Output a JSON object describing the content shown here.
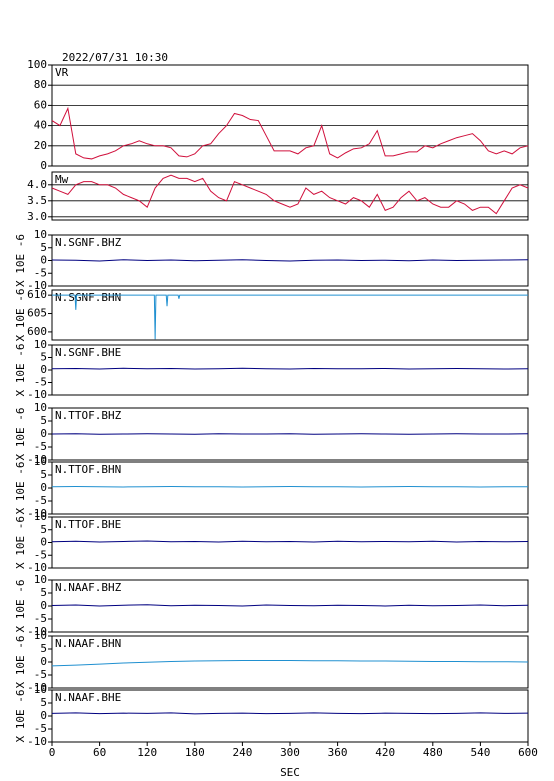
{
  "header": {
    "title": "2022/07/31  10:30"
  },
  "chart_data": [
    {
      "type": "line",
      "ylim": [
        0,
        100
      ],
      "yticks": [
        0,
        20,
        40,
        60,
        80,
        100
      ],
      "grid": true,
      "xlim": [
        0,
        600
      ],
      "x": [
        0,
        10,
        20,
        30,
        40,
        50,
        60,
        70,
        80,
        90,
        100,
        110,
        120,
        130,
        140,
        150,
        160,
        170,
        180,
        190,
        200,
        210,
        220,
        230,
        240,
        250,
        260,
        270,
        280,
        290,
        300,
        310,
        320,
        330,
        340,
        350,
        360,
        370,
        380,
        390,
        400,
        410,
        420,
        430,
        440,
        450,
        460,
        470,
        480,
        490,
        500,
        510,
        520,
        530,
        540,
        550,
        560,
        570,
        580,
        590,
        600
      ],
      "series": [
        {
          "name": "VR",
          "color": "#d0103c",
          "values": [
            45,
            40,
            57,
            12,
            8,
            7,
            10,
            12,
            15,
            20,
            22,
            25,
            22,
            20,
            20,
            18,
            10,
            9,
            12,
            20,
            22,
            32,
            40,
            52,
            50,
            46,
            45,
            30,
            15,
            15,
            15,
            12,
            18,
            20,
            40,
            12,
            8,
            13,
            17,
            18,
            22,
            35,
            10,
            10,
            12,
            14,
            14,
            20,
            18,
            22,
            25,
            28,
            30,
            32,
            25,
            15,
            12,
            15,
            12,
            18,
            20
          ]
        }
      ]
    },
    {
      "type": "line",
      "ylim": [
        2.9,
        4.4
      ],
      "yticks": [
        {
          "value": 3.0,
          "label": "3.0"
        },
        3.5,
        {
          "value": 4.0,
          "label": "4.0"
        }
      ],
      "grid": true,
      "xlim": [
        0,
        600
      ],
      "x": [
        0,
        10,
        20,
        30,
        40,
        50,
        60,
        70,
        80,
        90,
        100,
        110,
        120,
        130,
        140,
        150,
        160,
        170,
        180,
        190,
        200,
        210,
        220,
        230,
        240,
        250,
        260,
        270,
        280,
        290,
        300,
        310,
        320,
        330,
        340,
        350,
        360,
        370,
        380,
        390,
        400,
        410,
        420,
        430,
        440,
        450,
        460,
        470,
        480,
        490,
        500,
        510,
        520,
        530,
        540,
        550,
        560,
        570,
        580,
        590,
        600
      ],
      "series": [
        {
          "name": "Mw",
          "color": "#d0103c",
          "values": [
            3.9,
            3.8,
            3.7,
            4.0,
            4.1,
            4.1,
            4.0,
            4.0,
            3.9,
            3.7,
            3.6,
            3.5,
            3.3,
            3.9,
            4.2,
            4.3,
            4.2,
            4.2,
            4.1,
            4.2,
            3.8,
            3.6,
            3.5,
            4.1,
            4.0,
            3.9,
            3.8,
            3.7,
            3.5,
            3.4,
            3.3,
            3.4,
            3.9,
            3.7,
            3.8,
            3.6,
            3.5,
            3.4,
            3.6,
            3.5,
            3.3,
            3.7,
            3.2,
            3.3,
            3.6,
            3.8,
            3.5,
            3.6,
            3.4,
            3.3,
            3.3,
            3.5,
            3.4,
            3.2,
            3.3,
            3.3,
            3.1,
            3.5,
            3.9,
            4.0,
            3.9
          ]
        }
      ]
    },
    {
      "type": "line",
      "ylabel": "X 10E -6",
      "ylim": [
        -10,
        10
      ],
      "yticks": [
        -10,
        -5,
        0,
        5,
        10
      ],
      "xlim": [
        0,
        600
      ],
      "x": [
        0,
        30,
        60,
        90,
        120,
        150,
        180,
        210,
        240,
        270,
        300,
        330,
        360,
        390,
        420,
        450,
        480,
        510,
        540,
        570,
        600
      ],
      "series": [
        {
          "name": "N.SGNF.BHZ",
          "color": "#000080",
          "values": [
            0.2,
            0.1,
            -0.2,
            0.3,
            0,
            0.2,
            -0.1,
            0.1,
            0.3,
            0,
            -0.2,
            0.1,
            0.2,
            0,
            0.1,
            -0.1,
            0.2,
            0,
            0.1,
            0.2,
            0.3
          ]
        }
      ]
    },
    {
      "type": "line",
      "ylabel": "X 10E -6",
      "ylim": [
        597.8,
        611.4
      ],
      "yticks": [
        600,
        605,
        610
      ],
      "xlim": [
        0,
        600
      ],
      "x": [
        0,
        29,
        30,
        31,
        129,
        130,
        131,
        144,
        145,
        146,
        159,
        160,
        161,
        600
      ],
      "series": [
        {
          "name": "N.SGNF.BHN",
          "color": "#2090d0",
          "values": [
            610,
            610,
            606,
            610,
            610,
            598,
            610,
            610,
            607,
            610,
            610,
            609,
            610,
            610
          ]
        }
      ]
    },
    {
      "type": "line",
      "ylabel": "X 10E -6",
      "ylim": [
        -10,
        10
      ],
      "yticks": [
        -10,
        -5,
        0,
        5,
        10
      ],
      "xlim": [
        0,
        600
      ],
      "x": [
        0,
        30,
        60,
        90,
        120,
        150,
        180,
        210,
        240,
        270,
        300,
        330,
        360,
        390,
        420,
        450,
        480,
        510,
        540,
        570,
        600
      ],
      "series": [
        {
          "name": "N.SGNF.BHE",
          "color": "#000080",
          "values": [
            0.5,
            0.6,
            0.4,
            0.7,
            0.5,
            0.6,
            0.4,
            0.5,
            0.7,
            0.5,
            0.4,
            0.6,
            0.5,
            0.5,
            0.6,
            0.4,
            0.5,
            0.6,
            0.5,
            0.4,
            0.5
          ]
        }
      ]
    },
    {
      "type": "line",
      "ylabel": "X 10E -6",
      "ylim": [
        -10,
        10
      ],
      "yticks": [
        -10,
        -5,
        0,
        5,
        10
      ],
      "xlim": [
        0,
        600
      ],
      "x": [
        0,
        30,
        60,
        90,
        120,
        150,
        180,
        210,
        240,
        270,
        300,
        330,
        360,
        390,
        420,
        450,
        480,
        510,
        540,
        570,
        600
      ],
      "series": [
        {
          "name": "N.TTOF.BHZ",
          "color": "#000080",
          "values": [
            0,
            0.1,
            -0.1,
            0,
            0.1,
            0,
            -0.1,
            0.1,
            0,
            0,
            0.1,
            -0.1,
            0,
            0.1,
            0,
            -0.1,
            0,
            0.1,
            0,
            0,
            0.1
          ]
        }
      ]
    },
    {
      "type": "line",
      "ylabel": "X 10E -6",
      "ylim": [
        -10,
        10
      ],
      "yticks": [
        -10,
        -5,
        0,
        5,
        10
      ],
      "xlim": [
        0,
        600
      ],
      "x": [
        0,
        30,
        60,
        90,
        120,
        150,
        180,
        210,
        240,
        270,
        300,
        330,
        360,
        390,
        420,
        450,
        480,
        510,
        540,
        570,
        600
      ],
      "series": [
        {
          "name": "N.TTOF.BHN",
          "color": "#2090d0",
          "values": [
            0.5,
            0.6,
            0.5,
            0.4,
            0.5,
            0.6,
            0.5,
            0.5,
            0.4,
            0.5,
            0.6,
            0.5,
            0.5,
            0.4,
            0.5,
            0.6,
            0.5,
            0.5,
            0.4,
            0.5,
            0.5
          ]
        }
      ]
    },
    {
      "type": "line",
      "ylabel": "X 10E -6",
      "ylim": [
        -10,
        10
      ],
      "yticks": [
        -10,
        -5,
        0,
        5,
        10
      ],
      "xlim": [
        0,
        600
      ],
      "x": [
        0,
        30,
        60,
        90,
        120,
        150,
        180,
        210,
        240,
        270,
        300,
        330,
        360,
        390,
        420,
        450,
        480,
        510,
        540,
        570,
        600
      ],
      "series": [
        {
          "name": "N.TTOF.BHE",
          "color": "#000080",
          "values": [
            0.3,
            0.5,
            0.2,
            0.4,
            0.6,
            0.3,
            0.4,
            0.2,
            0.5,
            0.3,
            0.4,
            0.2,
            0.5,
            0.3,
            0.4,
            0.3,
            0.5,
            0.2,
            0.4,
            0.3,
            0.4
          ]
        }
      ]
    },
    {
      "type": "line",
      "ylabel": "X 10E -6",
      "ylim": [
        -10,
        10
      ],
      "yticks": [
        -10,
        -5,
        0,
        5,
        10
      ],
      "xlim": [
        0,
        600
      ],
      "x": [
        0,
        30,
        60,
        90,
        120,
        150,
        180,
        210,
        240,
        270,
        300,
        330,
        360,
        390,
        420,
        450,
        480,
        510,
        540,
        570,
        600
      ],
      "series": [
        {
          "name": "N.NAAF.BHZ",
          "color": "#000080",
          "values": [
            0.2,
            0.4,
            0,
            0.3,
            0.5,
            0.1,
            0.3,
            0.2,
            0,
            0.4,
            0.2,
            0.1,
            0.3,
            0.2,
            0,
            0.3,
            0.1,
            0.2,
            0.4,
            0.1,
            0.3
          ]
        }
      ]
    },
    {
      "type": "line",
      "ylabel": "X 10E -6",
      "ylim": [
        -10,
        10
      ],
      "yticks": [
        -10,
        -5,
        0,
        5,
        10
      ],
      "xlim": [
        0,
        600
      ],
      "x": [
        0,
        30,
        60,
        90,
        120,
        150,
        180,
        210,
        240,
        270,
        300,
        330,
        360,
        390,
        420,
        450,
        480,
        510,
        540,
        570,
        600
      ],
      "series": [
        {
          "name": "N.NAAF.BHN",
          "color": "#2090d0",
          "values": [
            -1.5,
            -1.2,
            -0.8,
            -0.4,
            -0.1,
            0.2,
            0.4,
            0.5,
            0.6,
            0.6,
            0.6,
            0.5,
            0.5,
            0.4,
            0.4,
            0.3,
            0.2,
            0.2,
            0.1,
            0.1,
            0
          ]
        }
      ]
    },
    {
      "type": "line",
      "ylabel": "X 10E -6",
      "ylim": [
        -10,
        10
      ],
      "yticks": [
        -10,
        -5,
        0,
        5,
        10
      ],
      "xlim": [
        0,
        600
      ],
      "xticks": [
        0,
        60,
        120,
        180,
        240,
        300,
        360,
        420,
        480,
        540,
        600
      ],
      "xlabel": "SEC",
      "x": [
        0,
        30,
        60,
        90,
        120,
        150,
        180,
        210,
        240,
        270,
        300,
        330,
        360,
        390,
        420,
        450,
        480,
        510,
        540,
        570,
        600
      ],
      "series": [
        {
          "name": "N.NAAF.BHE",
          "color": "#000080",
          "values": [
            1.0,
            1.2,
            0.9,
            1.1,
            1.0,
            1.2,
            0.8,
            1.0,
            1.1,
            0.9,
            1.0,
            1.2,
            1.0,
            0.9,
            1.1,
            1.0,
            0.9,
            1.0,
            1.2,
            1.0,
            1.1
          ]
        }
      ]
    }
  ]
}
